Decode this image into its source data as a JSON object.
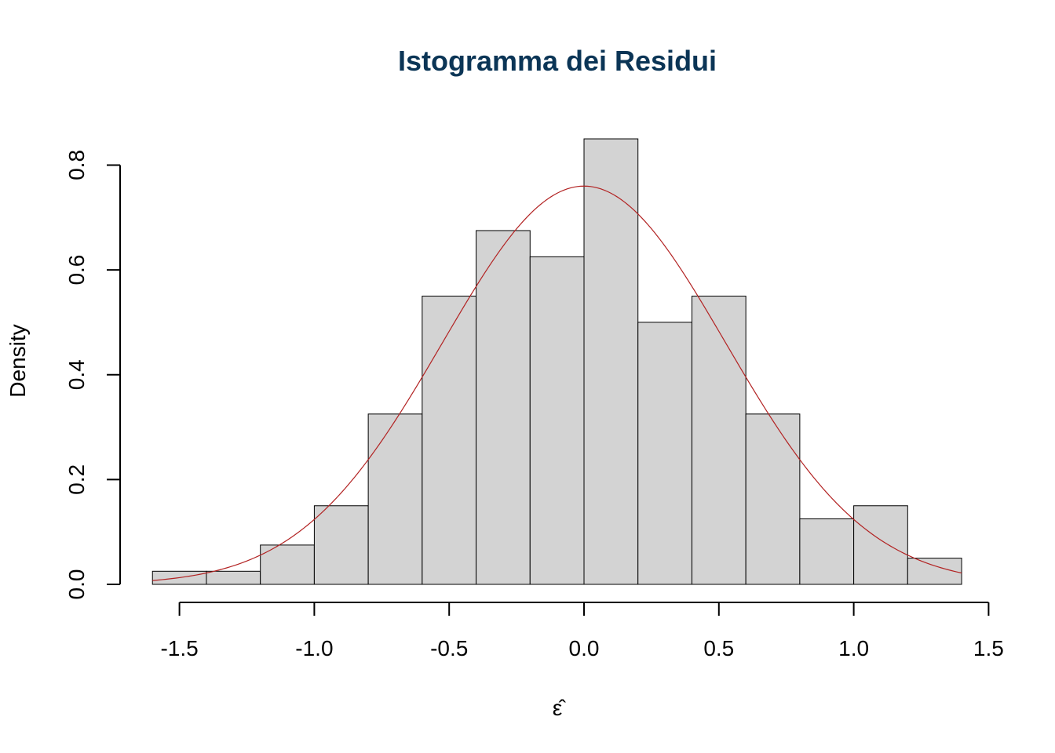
{
  "chart_data": {
    "type": "bar",
    "title": "Istogramma dei Residui",
    "xlabel": "ε̂",
    "ylabel": "Density",
    "xlim": [
      -1.6,
      1.4
    ],
    "ylim": [
      0,
      0.85
    ],
    "x_ticks": [
      -1.5,
      -1.0,
      -0.5,
      0.0,
      0.5,
      1.0,
      1.5
    ],
    "x_tick_labels": [
      "-1.5",
      "-1.0",
      "-0.5",
      "0.0",
      "0.5",
      "1.0",
      "1.5"
    ],
    "y_ticks": [
      0.0,
      0.2,
      0.4,
      0.6,
      0.8
    ],
    "y_tick_labels": [
      "0.0",
      "0.2",
      "0.4",
      "0.6",
      "0.8"
    ],
    "bins": [
      {
        "start": -1.6,
        "end": -1.4,
        "density": 0.025
      },
      {
        "start": -1.4,
        "end": -1.2,
        "density": 0.025
      },
      {
        "start": -1.2,
        "end": -1.0,
        "density": 0.075
      },
      {
        "start": -1.0,
        "end": -0.8,
        "density": 0.15
      },
      {
        "start": -0.8,
        "end": -0.6,
        "density": 0.325
      },
      {
        "start": -0.6,
        "end": -0.4,
        "density": 0.55
      },
      {
        "start": -0.4,
        "end": -0.2,
        "density": 0.675
      },
      {
        "start": -0.2,
        "end": 0.0,
        "density": 0.625
      },
      {
        "start": 0.0,
        "end": 0.2,
        "density": 0.85
      },
      {
        "start": 0.2,
        "end": 0.4,
        "density": 0.5
      },
      {
        "start": 0.4,
        "end": 0.6,
        "density": 0.55
      },
      {
        "start": 0.6,
        "end": 0.8,
        "density": 0.325
      },
      {
        "start": 0.8,
        "end": 1.0,
        "density": 0.125
      },
      {
        "start": 1.0,
        "end": 1.2,
        "density": 0.15
      },
      {
        "start": 1.2,
        "end": 1.4,
        "density": 0.05
      }
    ],
    "density_curve": {
      "type": "normal",
      "mean": 0.0,
      "sd": 0.525,
      "x_range": [
        -1.6,
        1.4
      ]
    },
    "colors": {
      "title": "#0b3556",
      "bar_fill": "#d3d3d3",
      "curve": "#b22222"
    }
  }
}
